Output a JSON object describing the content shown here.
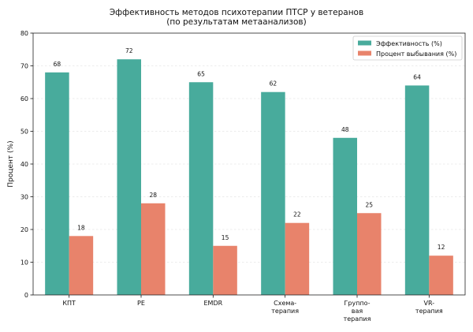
{
  "chart_data": {
    "type": "bar",
    "title_lines": [
      "Эффективность методов психотерапии ПТСР у ветеранов",
      "(по результатам метаанализов)"
    ],
    "xlabel": "",
    "ylabel": "Процент (%)",
    "ylim": [
      0,
      80
    ],
    "yticks": [
      0,
      10,
      20,
      30,
      40,
      50,
      60,
      70,
      80
    ],
    "grid": "horizontal, dashed",
    "legend_position": "top-right",
    "categories": [
      [
        "КПТ"
      ],
      [
        "PE"
      ],
      [
        "EMDR"
      ],
      [
        "Схема-",
        "терапия"
      ],
      [
        "Группо-",
        "вая",
        "терапия"
      ],
      [
        "VR-",
        "терапия"
      ]
    ],
    "series": [
      {
        "name": "Эффективность (%)",
        "color": "#48ab9c",
        "values": [
          68,
          72,
          65,
          62,
          48,
          64
        ]
      },
      {
        "name": "Процент выбывания (%)",
        "color": "#e8836b",
        "values": [
          18,
          28,
          15,
          22,
          25,
          12
        ]
      }
    ]
  }
}
